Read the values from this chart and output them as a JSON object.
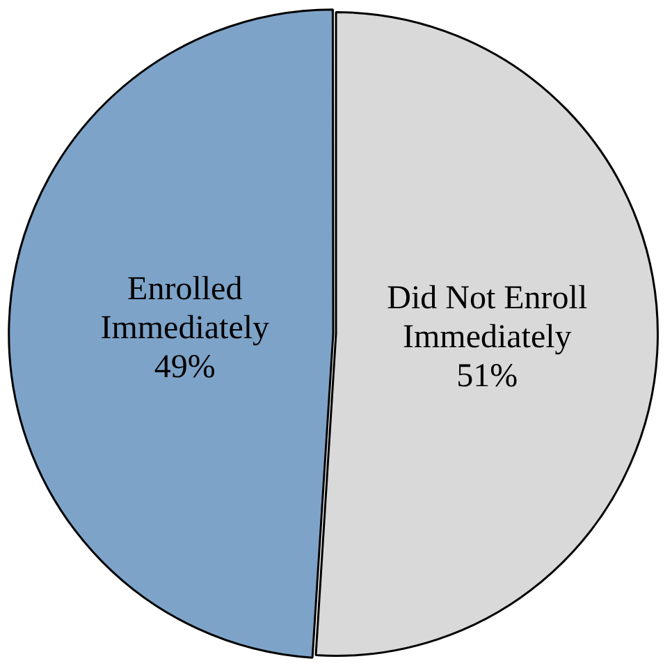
{
  "chart_data": {
    "type": "pie",
    "categories": [
      "Did Not Enroll Immediately",
      "Enrolled Immediately"
    ],
    "values": [
      51,
      49
    ],
    "value_labels": [
      "51%",
      "49%"
    ],
    "colors": [
      "#d9d9d9",
      "#7ea3c8"
    ],
    "legend": false
  }
}
